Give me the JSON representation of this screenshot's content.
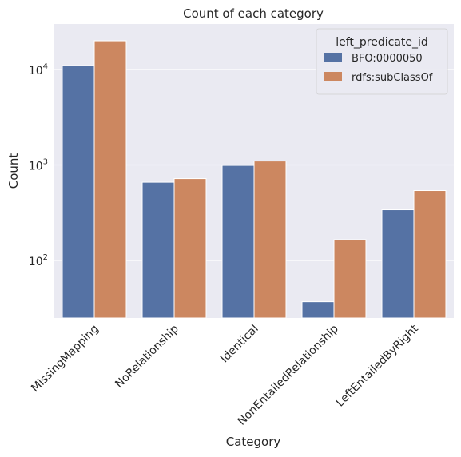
{
  "chart_data": {
    "type": "bar",
    "title": "Count of each category",
    "xlabel": "Category",
    "ylabel": "Count",
    "yscale": "log",
    "ylim": [
      25,
      30000
    ],
    "grid": true,
    "legend": {
      "title": "left_predicate_id",
      "placement": "top-right"
    },
    "categories": [
      "MissingMapping",
      "NoRelationship",
      "Identical",
      "NonEntailedRelationship",
      "LeftEntailedByRight"
    ],
    "series": [
      {
        "name": "BFO:0000050",
        "color": "#5572a4",
        "values": [
          11000,
          660,
          990,
          37,
          340
        ]
      },
      {
        "name": "rdfs:subClassOf",
        "color": "#cc8760",
        "values": [
          20000,
          720,
          1100,
          165,
          540
        ]
      }
    ],
    "yticks": [
      {
        "value": 100,
        "base": "10",
        "exp": "2"
      },
      {
        "value": 1000,
        "base": "10",
        "exp": "3"
      },
      {
        "value": 10000,
        "base": "10",
        "exp": "4"
      }
    ],
    "background_color": "#eaeaf2",
    "grid_color": "#ffffff"
  }
}
